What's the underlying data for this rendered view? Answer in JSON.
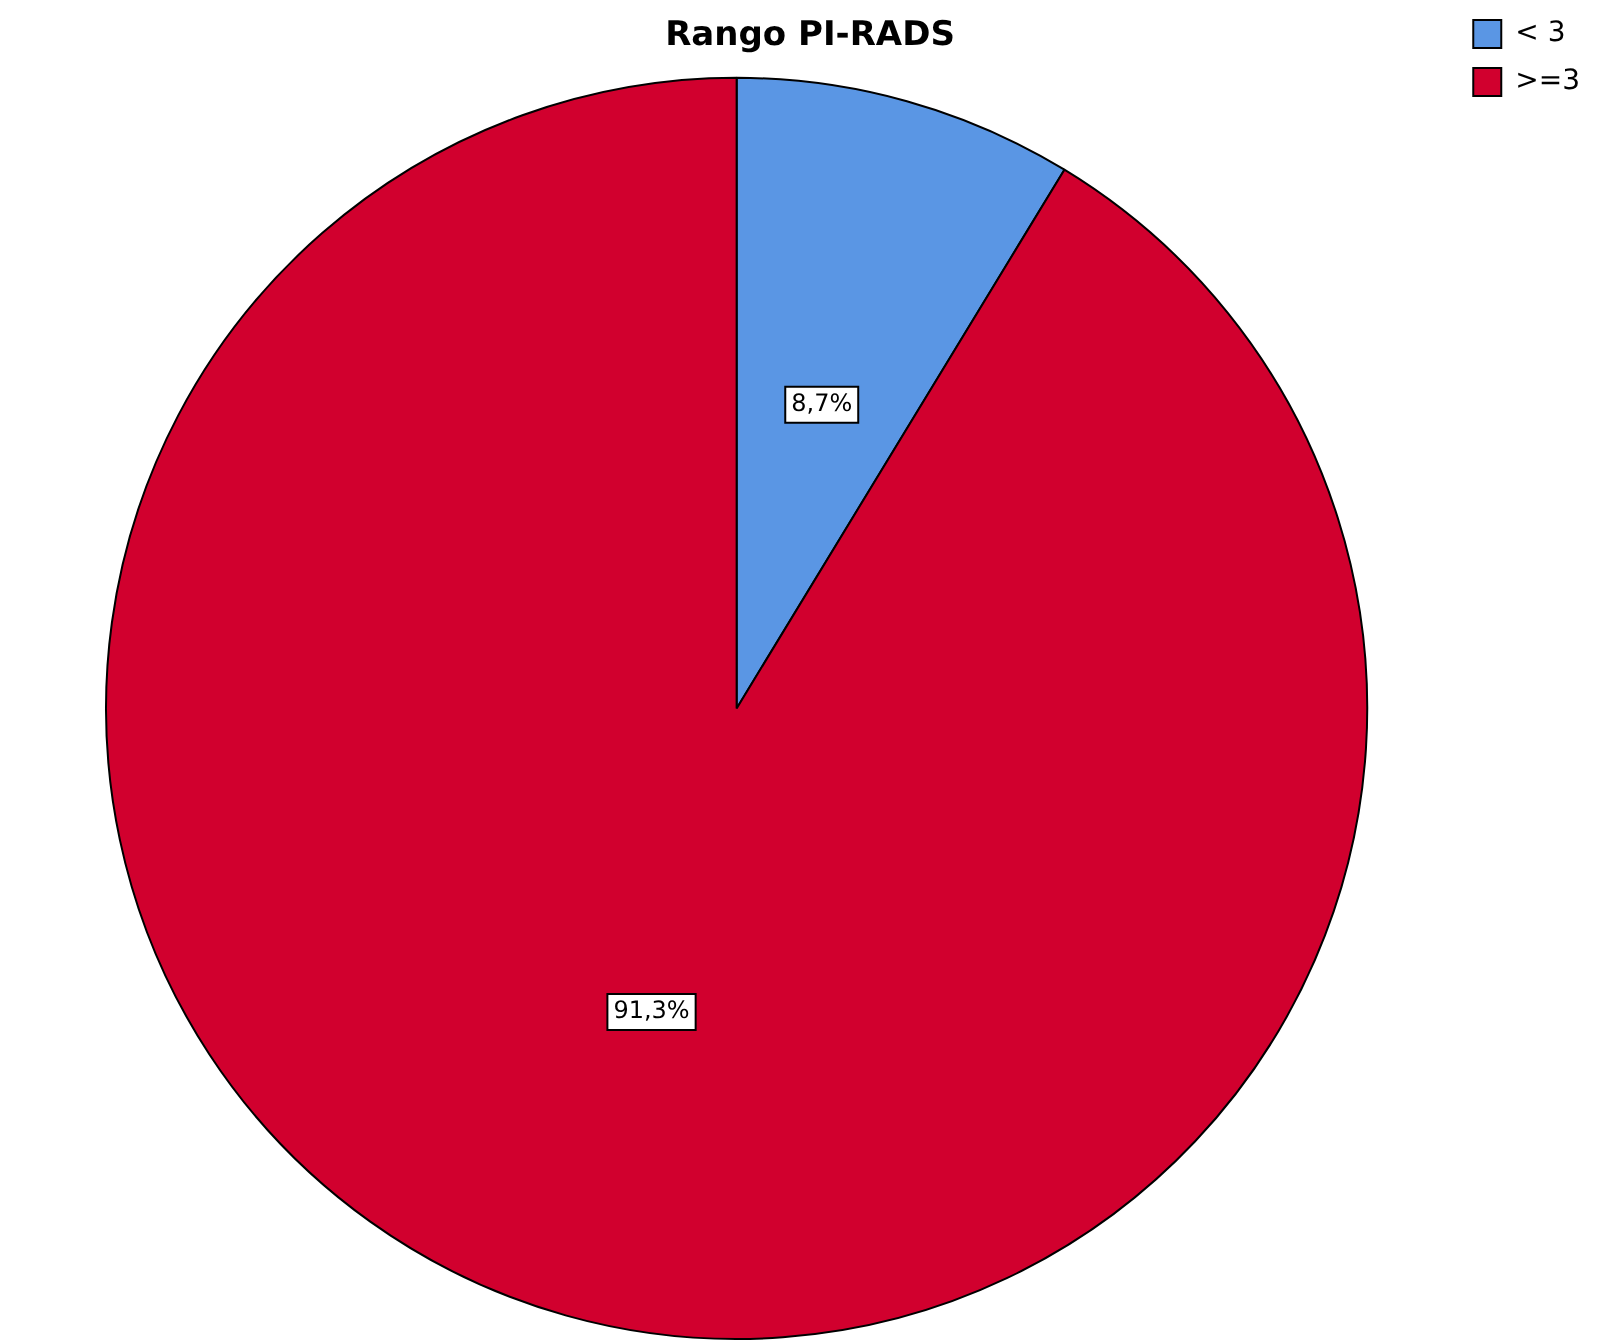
{
  "chart_data": {
    "type": "pie",
    "title": "Rango PI-RADS",
    "categories": [
      "< 3",
      ">=3"
    ],
    "values": [
      8.7,
      91.3
    ],
    "colors": [
      "#5a96e4",
      "#d1002e"
    ],
    "value_labels": [
      "8,7%",
      "91,3%"
    ],
    "legend": "top right"
  }
}
